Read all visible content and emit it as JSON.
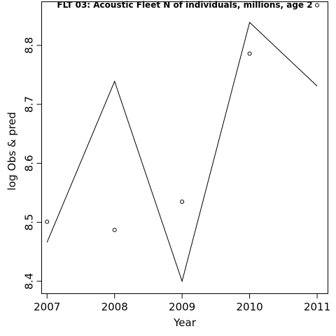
{
  "chart_data": {
    "type": "line",
    "title": "FLT 03: Acoustic Fleet  N of individuals, millions, age 2",
    "xlabel": "Year",
    "ylabel": "log Obs & pred",
    "x": [
      2007,
      2008,
      2009,
      2010,
      2011
    ],
    "x_ticks": [
      "2007",
      "2008",
      "2009",
      "2010",
      "2011"
    ],
    "y_ticks": [
      "8.4",
      "8.5",
      "8.6",
      "8.7",
      "8.8"
    ],
    "y_tick_values": [
      8.4,
      8.5,
      8.6,
      8.7,
      8.8
    ],
    "xlim": [
      2006.92,
      2011.16
    ],
    "ylim": [
      8.379,
      8.874
    ],
    "grid": false,
    "series": [
      {
        "kind": "line",
        "values": [
          8.466,
          8.739,
          8.4,
          8.839,
          8.731
        ]
      },
      {
        "kind": "points",
        "values": [
          8.501,
          8.487,
          8.535,
          8.786,
          8.868
        ]
      }
    ]
  }
}
